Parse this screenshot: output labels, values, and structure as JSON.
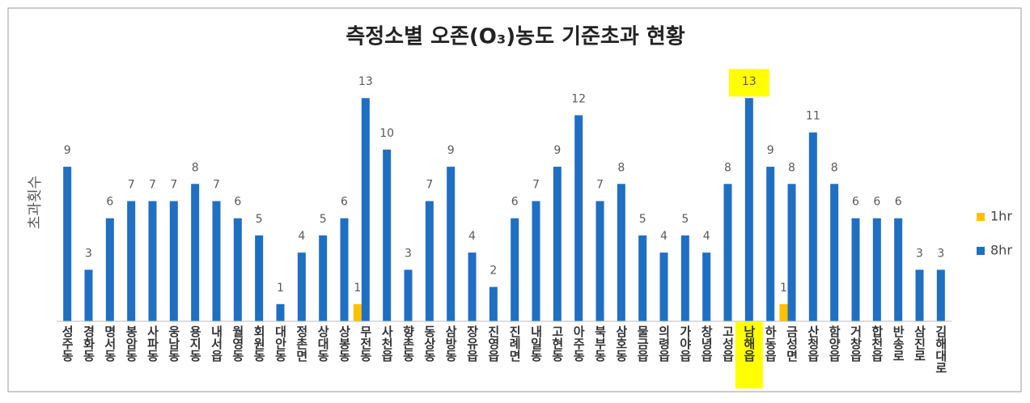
{
  "chart_data": {
    "type": "bar",
    "title": "측정소별 오존(O₃)농도 기준초과 현황",
    "ylabel": "초과횟수",
    "categories": [
      "성주동",
      "경화동",
      "명서동",
      "봉암동",
      "사파동",
      "웅남동",
      "용지동",
      "내서읍",
      "월영동",
      "회원동",
      "대안동",
      "정촌면",
      "상대동",
      "상봉동",
      "무전동",
      "사천읍",
      "향촌동",
      "동상동",
      "삼방동",
      "장유읍",
      "진영읍",
      "진례면",
      "내일동",
      "고현동",
      "아주동",
      "북부동",
      "삼호동",
      "물금읍",
      "의령읍",
      "가야읍",
      "창녕읍",
      "고성읍",
      "남해읍",
      "하동읍",
      "금성면",
      "산청읍",
      "함양읍",
      "거창읍",
      "합천읍",
      "반송로",
      "삼진로",
      "김해대로"
    ],
    "series": [
      {
        "name": "1hr",
        "color": "#ffc000",
        "values": [
          null,
          null,
          null,
          null,
          null,
          null,
          null,
          null,
          null,
          null,
          null,
          null,
          null,
          null,
          1,
          null,
          null,
          null,
          null,
          null,
          null,
          null,
          null,
          null,
          null,
          null,
          null,
          null,
          null,
          null,
          null,
          null,
          null,
          null,
          1,
          null,
          null,
          null,
          null,
          null,
          null,
          null
        ]
      },
      {
        "name": "8hr",
        "color": "#1f6fc2",
        "values": [
          9,
          3,
          6,
          7,
          7,
          7,
          8,
          7,
          6,
          5,
          1,
          4,
          5,
          6,
          13,
          10,
          3,
          7,
          9,
          4,
          2,
          6,
          7,
          9,
          12,
          7,
          8,
          5,
          4,
          5,
          4,
          8,
          13,
          9,
          8,
          11,
          8,
          6,
          6,
          6,
          3,
          3
        ]
      }
    ],
    "ylim": [
      0,
      14
    ],
    "legend": "right",
    "highlight": {
      "category": 32,
      "color": "#ffff00"
    }
  }
}
